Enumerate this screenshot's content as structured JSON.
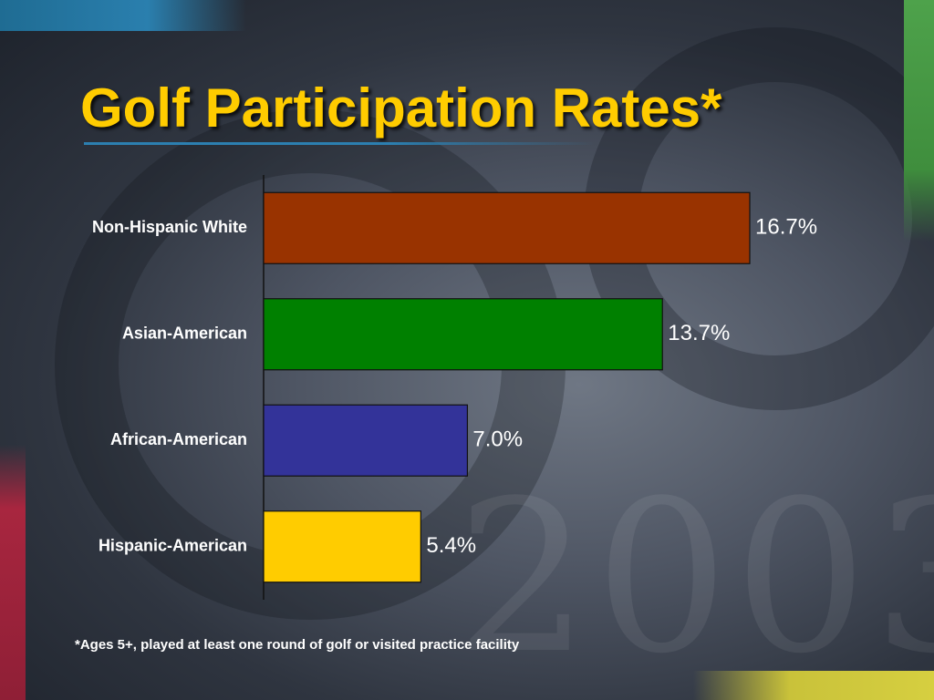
{
  "slide": {
    "title": "Golf Participation Rates*",
    "footnote": "*Ages 5+, played at least one round of golf or visited practice facility"
  },
  "theme": {
    "title_color": "#ffcc00",
    "accent_colors": [
      "#2a7fae",
      "#4ea24b",
      "#a8263f",
      "#d6cf40"
    ]
  },
  "chart_data": {
    "type": "bar",
    "orientation": "horizontal",
    "title": "Golf Participation Rates*",
    "xlabel": "",
    "ylabel": "",
    "categories": [
      "Non-Hispanic White",
      "Asian-American",
      "African-American",
      "Hispanic-American"
    ],
    "values": [
      16.7,
      13.7,
      7.0,
      5.4
    ],
    "value_labels": [
      "16.7%",
      "13.7%",
      "7.0%",
      "5.4%"
    ],
    "bar_colors": [
      "#993300",
      "#008000",
      "#333399",
      "#ffcc00"
    ],
    "xlim": [
      0,
      16.7
    ],
    "grid": false,
    "legend": "none"
  }
}
